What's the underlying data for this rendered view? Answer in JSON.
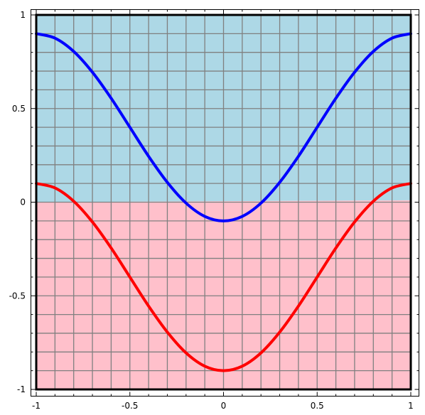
{
  "chart_data": {
    "type": "line",
    "title": "",
    "xlabel": "",
    "ylabel": "",
    "xlim": [
      -1,
      1
    ],
    "ylim": [
      -1,
      1
    ],
    "x_ticks": [
      -1,
      -0.5,
      0,
      0.5,
      1
    ],
    "x_tick_labels": [
      "-1",
      "-0.5",
      "0",
      "0.5",
      "1"
    ],
    "y_ticks": [
      -1,
      -0.5,
      0,
      0.5,
      1
    ],
    "y_tick_labels": [
      "-1",
      "-0.5",
      "0",
      "0.5",
      "1"
    ],
    "grid": true,
    "grid_step": 0.1,
    "grid_color": "#808080",
    "regions": [
      {
        "name": "upper",
        "color": "#add8e6",
        "y_left": 0.0,
        "y_right": 0.01,
        "to": 1
      },
      {
        "name": "lower",
        "color": "#ffc0cb",
        "y_left": 0.0,
        "y_right": 0.01,
        "to": -1
      }
    ],
    "series": [
      {
        "color": "#0000ff",
        "x": [
          -1,
          -0.9,
          -0.8,
          -0.7,
          -0.6,
          -0.5,
          -0.4,
          -0.3,
          -0.2,
          -0.1,
          0,
          0.1,
          0.2,
          0.3,
          0.4,
          0.5,
          0.6,
          0.7,
          0.8,
          0.9,
          1
        ],
        "y": [
          0.9,
          0.876,
          0.805,
          0.694,
          0.555,
          0.4,
          0.245,
          0.106,
          -0.005,
          -0.076,
          -0.1,
          -0.076,
          -0.005,
          0.106,
          0.245,
          0.4,
          0.555,
          0.694,
          0.805,
          0.876,
          0.9
        ]
      },
      {
        "color": "#ff0000",
        "x": [
          -1,
          -0.9,
          -0.8,
          -0.7,
          -0.6,
          -0.5,
          -0.4,
          -0.3,
          -0.2,
          -0.1,
          0,
          0.1,
          0.2,
          0.3,
          0.4,
          0.5,
          0.6,
          0.7,
          0.8,
          0.9,
          1
        ],
        "y": [
          0.1,
          0.076,
          0.005,
          -0.106,
          -0.245,
          -0.4,
          -0.555,
          -0.694,
          -0.805,
          -0.876,
          -0.9,
          -0.876,
          -0.805,
          -0.694,
          -0.555,
          -0.4,
          -0.245,
          -0.106,
          0.005,
          0.076,
          0.1
        ]
      }
    ]
  }
}
